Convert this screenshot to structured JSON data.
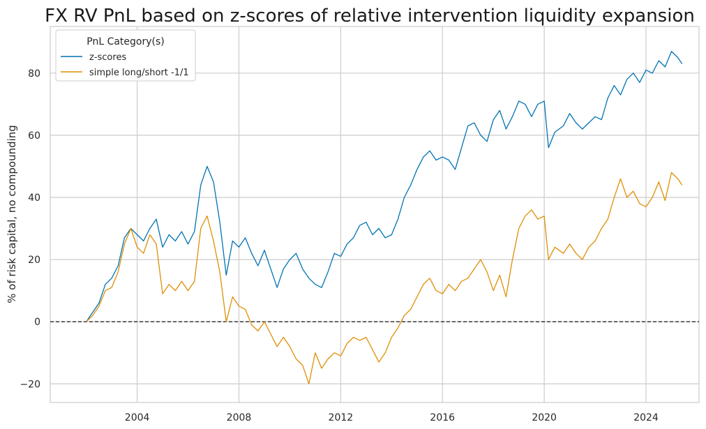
{
  "chart_data": {
    "type": "line",
    "title": "FX RV PnL based on z-scores of relative intervention liquidity expansion",
    "xlabel": "",
    "ylabel": "% of risk capital, no compounding",
    "x_ticks": [
      "2004",
      "2008",
      "2012",
      "2016",
      "2020",
      "2024"
    ],
    "y_ticks": [
      "−20",
      "0",
      "20",
      "40",
      "60",
      "80"
    ],
    "xlim": [
      "2000-08-01",
      "2026-02-01"
    ],
    "ylim": [
      -26,
      95
    ],
    "grid": true,
    "zero_line": {
      "y": 0,
      "style": "dashed",
      "color": "#000000"
    },
    "legend": {
      "title": "PnL Category(s)",
      "position": "top-left"
    },
    "series": [
      {
        "name": "z-scores",
        "color": "#0173b2",
        "points": [
          [
            "2002-01-01",
            0
          ],
          [
            "2002-04-01",
            3
          ],
          [
            "2002-07-01",
            6
          ],
          [
            "2002-10-01",
            12
          ],
          [
            "2003-01-01",
            14
          ],
          [
            "2003-04-01",
            18
          ],
          [
            "2003-07-01",
            27
          ],
          [
            "2003-10-01",
            30
          ],
          [
            "2004-01-01",
            28
          ],
          [
            "2004-04-01",
            26
          ],
          [
            "2004-07-01",
            30
          ],
          [
            "2004-10-01",
            33
          ],
          [
            "2005-01-01",
            24
          ],
          [
            "2005-04-01",
            28
          ],
          [
            "2005-07-01",
            26
          ],
          [
            "2005-10-01",
            29
          ],
          [
            "2006-01-01",
            25
          ],
          [
            "2006-04-01",
            29
          ],
          [
            "2006-07-01",
            44
          ],
          [
            "2006-10-01",
            50
          ],
          [
            "2007-01-01",
            45
          ],
          [
            "2007-04-01",
            32
          ],
          [
            "2007-07-01",
            15
          ],
          [
            "2007-10-01",
            26
          ],
          [
            "2008-01-01",
            24
          ],
          [
            "2008-04-01",
            27
          ],
          [
            "2008-07-01",
            22
          ],
          [
            "2008-10-01",
            18
          ],
          [
            "2009-01-01",
            23
          ],
          [
            "2009-04-01",
            17
          ],
          [
            "2009-07-01",
            11
          ],
          [
            "2009-10-01",
            17
          ],
          [
            "2010-01-01",
            20
          ],
          [
            "2010-04-01",
            22
          ],
          [
            "2010-07-01",
            17
          ],
          [
            "2010-10-01",
            14
          ],
          [
            "2011-01-01",
            12
          ],
          [
            "2011-04-01",
            11
          ],
          [
            "2011-07-01",
            16
          ],
          [
            "2011-10-01",
            22
          ],
          [
            "2012-01-01",
            21
          ],
          [
            "2012-04-01",
            25
          ],
          [
            "2012-07-01",
            27
          ],
          [
            "2012-10-01",
            31
          ],
          [
            "2013-01-01",
            32
          ],
          [
            "2013-04-01",
            28
          ],
          [
            "2013-07-01",
            30
          ],
          [
            "2013-10-01",
            27
          ],
          [
            "2014-01-01",
            28
          ],
          [
            "2014-04-01",
            33
          ],
          [
            "2014-07-01",
            40
          ],
          [
            "2014-10-01",
            44
          ],
          [
            "2015-01-01",
            49
          ],
          [
            "2015-04-01",
            53
          ],
          [
            "2015-07-01",
            55
          ],
          [
            "2015-10-01",
            52
          ],
          [
            "2016-01-01",
            53
          ],
          [
            "2016-04-01",
            52
          ],
          [
            "2016-07-01",
            49
          ],
          [
            "2016-10-01",
            56
          ],
          [
            "2017-01-01",
            63
          ],
          [
            "2017-04-01",
            64
          ],
          [
            "2017-07-01",
            60
          ],
          [
            "2017-10-01",
            58
          ],
          [
            "2018-01-01",
            65
          ],
          [
            "2018-04-01",
            68
          ],
          [
            "2018-07-01",
            62
          ],
          [
            "2018-10-01",
            66
          ],
          [
            "2019-01-01",
            71
          ],
          [
            "2019-04-01",
            70
          ],
          [
            "2019-07-01",
            66
          ],
          [
            "2019-10-01",
            70
          ],
          [
            "2020-01-01",
            71
          ],
          [
            "2020-03-01",
            56
          ],
          [
            "2020-06-01",
            61
          ],
          [
            "2020-10-01",
            63
          ],
          [
            "2021-01-01",
            67
          ],
          [
            "2021-04-01",
            64
          ],
          [
            "2021-07-01",
            62
          ],
          [
            "2021-10-01",
            64
          ],
          [
            "2022-01-01",
            66
          ],
          [
            "2022-04-01",
            65
          ],
          [
            "2022-07-01",
            72
          ],
          [
            "2022-10-01",
            76
          ],
          [
            "2023-01-01",
            73
          ],
          [
            "2023-04-01",
            78
          ],
          [
            "2023-07-01",
            80
          ],
          [
            "2023-10-01",
            77
          ],
          [
            "2024-01-01",
            81
          ],
          [
            "2024-04-01",
            80
          ],
          [
            "2024-07-01",
            84
          ],
          [
            "2024-10-01",
            82
          ],
          [
            "2025-01-01",
            87
          ],
          [
            "2025-04-01",
            85
          ],
          [
            "2025-06-01",
            83
          ]
        ]
      },
      {
        "name": "simple long/short -1/1",
        "color": "#de8f05",
        "points": [
          [
            "2002-01-01",
            0
          ],
          [
            "2002-04-01",
            2
          ],
          [
            "2002-07-01",
            5
          ],
          [
            "2002-10-01",
            10
          ],
          [
            "2003-01-01",
            11
          ],
          [
            "2003-04-01",
            16
          ],
          [
            "2003-07-01",
            25
          ],
          [
            "2003-10-01",
            30
          ],
          [
            "2004-01-01",
            24
          ],
          [
            "2004-04-01",
            22
          ],
          [
            "2004-07-01",
            28
          ],
          [
            "2004-10-01",
            25
          ],
          [
            "2005-01-01",
            9
          ],
          [
            "2005-04-01",
            12
          ],
          [
            "2005-07-01",
            10
          ],
          [
            "2005-10-01",
            13
          ],
          [
            "2006-01-01",
            10
          ],
          [
            "2006-04-01",
            13
          ],
          [
            "2006-07-01",
            30
          ],
          [
            "2006-10-01",
            34
          ],
          [
            "2007-01-01",
            26
          ],
          [
            "2007-04-01",
            16
          ],
          [
            "2007-07-01",
            0
          ],
          [
            "2007-10-01",
            8
          ],
          [
            "2008-01-01",
            5
          ],
          [
            "2008-04-01",
            4
          ],
          [
            "2008-07-01",
            -1
          ],
          [
            "2008-10-01",
            -3
          ],
          [
            "2009-01-01",
            0
          ],
          [
            "2009-04-01",
            -4
          ],
          [
            "2009-07-01",
            -8
          ],
          [
            "2009-10-01",
            -5
          ],
          [
            "2010-01-01",
            -8
          ],
          [
            "2010-04-01",
            -12
          ],
          [
            "2010-07-01",
            -14
          ],
          [
            "2010-10-01",
            -20
          ],
          [
            "2011-01-01",
            -10
          ],
          [
            "2011-04-01",
            -15
          ],
          [
            "2011-07-01",
            -12
          ],
          [
            "2011-10-01",
            -10
          ],
          [
            "2012-01-01",
            -11
          ],
          [
            "2012-04-01",
            -7
          ],
          [
            "2012-07-01",
            -5
          ],
          [
            "2012-10-01",
            -6
          ],
          [
            "2013-01-01",
            -5
          ],
          [
            "2013-04-01",
            -9
          ],
          [
            "2013-07-01",
            -13
          ],
          [
            "2013-10-01",
            -10
          ],
          [
            "2014-01-01",
            -5
          ],
          [
            "2014-04-01",
            -2
          ],
          [
            "2014-07-01",
            2
          ],
          [
            "2014-10-01",
            4
          ],
          [
            "2015-01-01",
            8
          ],
          [
            "2015-04-01",
            12
          ],
          [
            "2015-07-01",
            14
          ],
          [
            "2015-10-01",
            10
          ],
          [
            "2016-01-01",
            9
          ],
          [
            "2016-04-01",
            12
          ],
          [
            "2016-07-01",
            10
          ],
          [
            "2016-10-01",
            13
          ],
          [
            "2017-01-01",
            14
          ],
          [
            "2017-04-01",
            17
          ],
          [
            "2017-07-01",
            20
          ],
          [
            "2017-10-01",
            16
          ],
          [
            "2018-01-01",
            10
          ],
          [
            "2018-04-01",
            15
          ],
          [
            "2018-07-01",
            8
          ],
          [
            "2018-10-01",
            20
          ],
          [
            "2019-01-01",
            30
          ],
          [
            "2019-04-01",
            34
          ],
          [
            "2019-07-01",
            36
          ],
          [
            "2019-10-01",
            33
          ],
          [
            "2020-01-01",
            34
          ],
          [
            "2020-03-01",
            20
          ],
          [
            "2020-06-01",
            24
          ],
          [
            "2020-10-01",
            22
          ],
          [
            "2021-01-01",
            25
          ],
          [
            "2021-04-01",
            22
          ],
          [
            "2021-07-01",
            20
          ],
          [
            "2021-10-01",
            24
          ],
          [
            "2022-01-01",
            26
          ],
          [
            "2022-04-01",
            30
          ],
          [
            "2022-07-01",
            33
          ],
          [
            "2022-10-01",
            40
          ],
          [
            "2023-01-01",
            46
          ],
          [
            "2023-04-01",
            40
          ],
          [
            "2023-07-01",
            42
          ],
          [
            "2023-10-01",
            38
          ],
          [
            "2024-01-01",
            37
          ],
          [
            "2024-04-01",
            40
          ],
          [
            "2024-07-01",
            45
          ],
          [
            "2024-10-01",
            39
          ],
          [
            "2025-01-01",
            48
          ],
          [
            "2025-04-01",
            46
          ],
          [
            "2025-06-01",
            44
          ]
        ]
      }
    ]
  }
}
